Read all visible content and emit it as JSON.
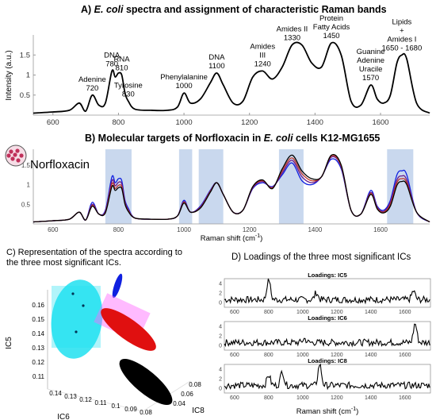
{
  "panelA": {
    "title_prefix": "A) ",
    "title_italic": "E. coli",
    "title_suffix": " spectra and assignment of characteristic Raman bands",
    "ylabel": "Intensity (a.u.)",
    "yticks": [
      "0.5",
      "1",
      "1.5"
    ],
    "xticks": [
      "600",
      "800",
      "1000",
      "1200",
      "1400",
      "1600"
    ]
  },
  "panelB": {
    "title_prefix": "B) Molecular targets of Norfloxacin in ",
    "title_italic": "E. coli",
    "title_suffix": " cells K12-MG1655",
    "drug_label": "Norfloxacin",
    "xlabel": "Raman shift (cm",
    "xlabel_sup": "-1",
    "xlabel_end": ")",
    "yticks": [
      "0.5",
      "1",
      "1.5"
    ],
    "xticks": [
      "600",
      "800",
      "1000",
      "1200",
      "1400",
      "1600"
    ]
  },
  "panelC": {
    "caption_line1": "C) Representation of the spectra according to",
    "caption_line2": "the three most significant ICs.",
    "axis_ic5": "IC5",
    "axis_ic6": "IC6",
    "axis_ic8": "IC8",
    "ic5_ticks": [
      "0.16",
      "0.15",
      "0.14",
      "0.13",
      "0.12",
      "0.11"
    ],
    "ic6_ticks": [
      "0.14",
      "0.13",
      "0.12",
      "0.11",
      "0.1",
      "0.09",
      "0.08"
    ],
    "ic8_ticks": [
      "0.08",
      "0.06",
      "0.04"
    ]
  },
  "panelD": {
    "title": "D) Loadings of the three most significant  ICs",
    "xlabel": "Raman shift (cm",
    "xlabel_sup": "-1",
    "xlabel_end": ")",
    "xticks": [
      "600",
      "800",
      "1000",
      "1200",
      "1400",
      "1600"
    ],
    "yticks": [
      "4",
      "2",
      "0"
    ]
  },
  "colors": {
    "highlight": "#c9d8ee",
    "cluster_cyan": "#20e0f0",
    "cluster_blue": "#1020e0",
    "cluster_red": "#e01010",
    "cluster_black": "#000000",
    "halo_magenta": "#ff66ff"
  },
  "chart_data": [
    {
      "type": "line",
      "title": "E. coli spectra and assignment of characteristic Raman bands",
      "ylabel": "Intensity (a.u.)",
      "xlim": [
        540,
        1750
      ],
      "ylim": [
        0,
        2.0
      ],
      "x": [
        540,
        560,
        600,
        650,
        680,
        700,
        720,
        740,
        760,
        780,
        790,
        800,
        810,
        820,
        830,
        850,
        900,
        950,
        980,
        1000,
        1020,
        1050,
        1080,
        1100,
        1120,
        1150,
        1180,
        1210,
        1240,
        1270,
        1300,
        1330,
        1360,
        1390,
        1420,
        1450,
        1480,
        1510,
        1540,
        1570,
        1590,
        1610,
        1630,
        1650,
        1665,
        1680,
        1710,
        1750
      ],
      "series": [
        {
          "values": [
            0.05,
            0.06,
            0.08,
            0.12,
            0.3,
            0.1,
            0.5,
            0.25,
            0.3,
            1.1,
            0.95,
            1.05,
            1.0,
            0.55,
            0.35,
            0.15,
            0.12,
            0.12,
            0.2,
            0.55,
            0.3,
            0.4,
            0.8,
            1.05,
            0.75,
            0.3,
            0.35,
            0.95,
            1.1,
            0.9,
            1.2,
            1.75,
            1.75,
            1.3,
            1.2,
            1.8,
            1.5,
            0.35,
            0.25,
            0.75,
            0.4,
            0.3,
            0.5,
            1.3,
            1.5,
            1.4,
            0.3,
            0.05
          ]
        }
      ],
      "annotations": [
        {
          "x": 720,
          "text": [
            "Adenine",
            "720"
          ]
        },
        {
          "x": 780,
          "text": [
            "DNA",
            "780"
          ]
        },
        {
          "x": 810,
          "text": [
            "RNA",
            "810"
          ]
        },
        {
          "x": 830,
          "text": [
            "Tyrosine",
            "830"
          ]
        },
        {
          "x": 1000,
          "text": [
            "Phenylalanine",
            "1000"
          ]
        },
        {
          "x": 1100,
          "text": [
            "DNA",
            "1100"
          ]
        },
        {
          "x": 1240,
          "text": [
            "Amides",
            "III",
            "1240"
          ]
        },
        {
          "x": 1330,
          "text": [
            "Amides II",
            "1330"
          ]
        },
        {
          "x": 1450,
          "text": [
            "Protein",
            "Fatty Acids",
            "1450"
          ]
        },
        {
          "x": 1570,
          "text": [
            "Guanine",
            "Adenine",
            "Uracile",
            "1570"
          ]
        },
        {
          "x": 1665,
          "text": [
            "Lipids",
            "+",
            "Amides I",
            "1650 - 1680"
          ]
        }
      ]
    },
    {
      "type": "line",
      "title": "Molecular targets of Norfloxacin in E. coli cells K12-MG1655",
      "xlabel": "Raman shift (cm-1)",
      "xlim": [
        540,
        1750
      ],
      "ylim": [
        0,
        1.9
      ],
      "x": [
        540,
        560,
        600,
        650,
        680,
        700,
        720,
        740,
        760,
        780,
        790,
        800,
        810,
        820,
        830,
        850,
        900,
        950,
        980,
        1000,
        1020,
        1050,
        1080,
        1100,
        1120,
        1150,
        1180,
        1210,
        1240,
        1270,
        1300,
        1330,
        1360,
        1390,
        1420,
        1450,
        1480,
        1510,
        1540,
        1570,
        1590,
        1610,
        1630,
        1650,
        1665,
        1680,
        1710,
        1750
      ],
      "highlight_bands": [
        [
          760,
          840
        ],
        [
          985,
          1025
        ],
        [
          1045,
          1120
        ],
        [
          1290,
          1365
        ],
        [
          1620,
          1700
        ]
      ],
      "series": [
        {
          "color": "#1020e0",
          "values": [
            0.05,
            0.06,
            0.08,
            0.12,
            0.3,
            0.1,
            0.55,
            0.25,
            0.35,
            1.2,
            1.05,
            1.15,
            1.1,
            0.6,
            0.4,
            0.15,
            0.12,
            0.12,
            0.2,
            0.6,
            0.3,
            0.45,
            0.85,
            1.05,
            0.75,
            0.3,
            0.35,
            0.9,
            1.05,
            0.95,
            1.25,
            1.55,
            1.1,
            1.0,
            1.2,
            1.65,
            1.4,
            0.35,
            0.25,
            0.85,
            0.45,
            0.35,
            0.6,
            1.25,
            1.35,
            1.25,
            0.3,
            0.05
          ]
        },
        {
          "color": "#6a1a8a",
          "values": [
            0.05,
            0.06,
            0.08,
            0.12,
            0.3,
            0.1,
            0.5,
            0.25,
            0.32,
            1.1,
            0.97,
            1.06,
            1.02,
            0.56,
            0.36,
            0.15,
            0.12,
            0.12,
            0.2,
            0.57,
            0.3,
            0.43,
            0.83,
            1.05,
            0.75,
            0.3,
            0.35,
            0.92,
            1.08,
            0.93,
            1.3,
            1.62,
            1.2,
            1.05,
            1.2,
            1.7,
            1.45,
            0.35,
            0.25,
            0.8,
            0.42,
            0.32,
            0.55,
            1.12,
            1.22,
            1.12,
            0.3,
            0.05
          ]
        },
        {
          "color": "#c0382b",
          "values": [
            0.05,
            0.06,
            0.08,
            0.12,
            0.3,
            0.1,
            0.47,
            0.25,
            0.3,
            1.02,
            0.9,
            0.98,
            0.95,
            0.52,
            0.34,
            0.15,
            0.12,
            0.12,
            0.2,
            0.55,
            0.3,
            0.41,
            0.82,
            1.05,
            0.75,
            0.3,
            0.35,
            0.94,
            1.1,
            0.92,
            1.35,
            1.68,
            1.28,
            1.1,
            1.2,
            1.73,
            1.47,
            0.35,
            0.25,
            0.77,
            0.4,
            0.3,
            0.5,
            1.05,
            1.15,
            1.05,
            0.3,
            0.05
          ]
        },
        {
          "color": "#000000",
          "values": [
            0.05,
            0.06,
            0.08,
            0.12,
            0.3,
            0.1,
            0.45,
            0.25,
            0.28,
            0.95,
            0.85,
            0.92,
            0.9,
            0.5,
            0.32,
            0.15,
            0.12,
            0.12,
            0.2,
            0.53,
            0.3,
            0.4,
            0.8,
            1.05,
            0.75,
            0.3,
            0.35,
            0.95,
            1.12,
            0.9,
            1.4,
            1.75,
            1.35,
            1.15,
            1.2,
            1.75,
            1.5,
            0.35,
            0.25,
            0.75,
            0.38,
            0.28,
            0.45,
            0.98,
            1.08,
            1.0,
            0.3,
            0.05
          ]
        }
      ]
    },
    {
      "type": "scatter",
      "title": "Representation of the spectra according to the three most significant ICs.",
      "axes": [
        "IC6",
        "IC8",
        "IC5"
      ],
      "clusters": [
        {
          "color": "#20e0f0",
          "center": [
            0.125,
            0.08,
            0.145
          ]
        },
        {
          "color": "#1020e0",
          "center": [
            0.105,
            0.08,
            0.162
          ]
        },
        {
          "color": "#e01010",
          "center": [
            0.105,
            0.06,
            0.132
          ]
        },
        {
          "color": "#000000",
          "center": [
            0.085,
            0.04,
            0.118
          ]
        }
      ]
    },
    {
      "type": "line",
      "title": "Loadings of the three most significant ICs",
      "xlabel": "Raman shift (cm-1)",
      "xlim": [
        540,
        1750
      ],
      "ylim": [
        -1,
        5
      ],
      "panels": [
        {
          "title": "Loadings: IC5",
          "peaks": [
            {
              "x": 800,
              "y": 4.5
            },
            {
              "x": 1080,
              "y": 1.5
            },
            {
              "x": 1650,
              "y": 1.8
            }
          ]
        },
        {
          "title": "Loadings: IC6",
          "peaks": [
            {
              "x": 1660,
              "y": 4.0
            },
            {
              "x": 1010,
              "y": 0.8
            }
          ]
        },
        {
          "title": "Loadings: IC8",
          "peaks": [
            {
              "x": 1100,
              "y": 4.5
            },
            {
              "x": 880,
              "y": 3.0
            },
            {
              "x": 800,
              "y": 2.2
            }
          ]
        }
      ]
    }
  ]
}
